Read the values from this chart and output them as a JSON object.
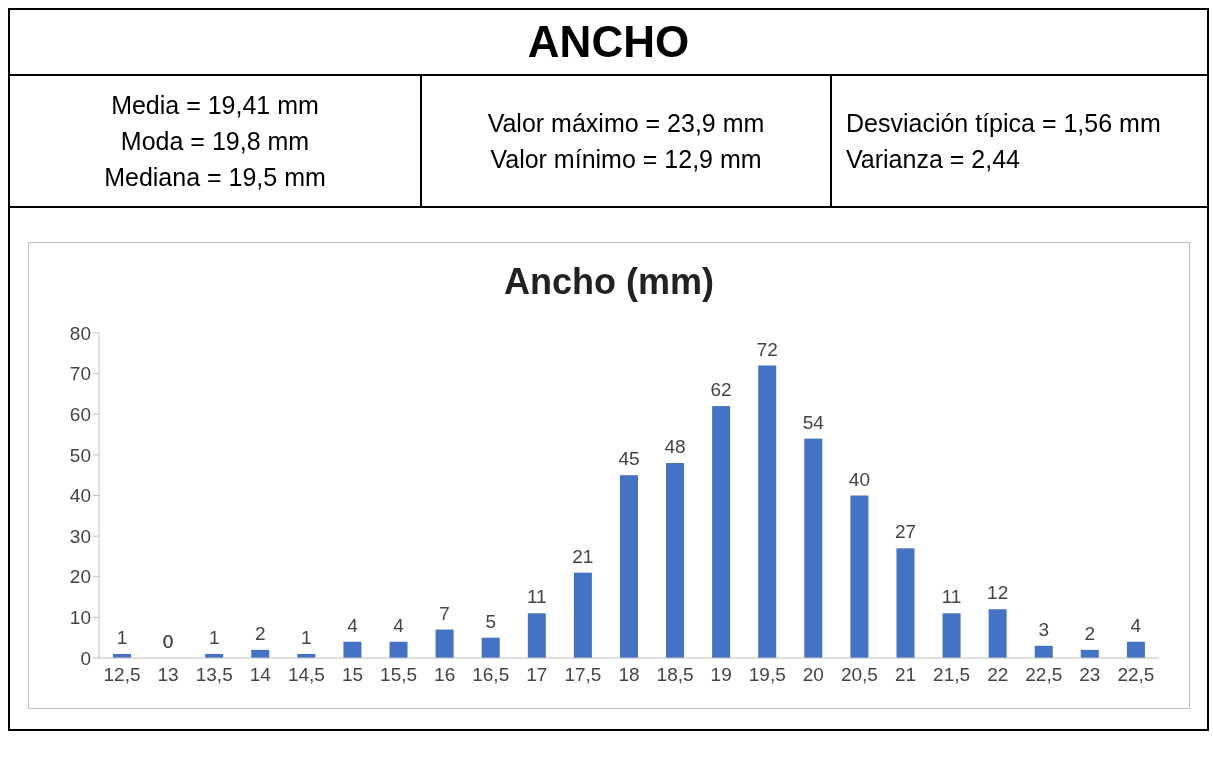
{
  "chart_data": {
    "type": "bar",
    "title": "ANCHO",
    "subtitle": "Ancho (mm)",
    "annotations": [
      "Media = 19,41 mm\nModa = 19,8 mm\nMediana = 19,5 mm",
      "Valor máximo = 23,9 mm\nValor mínimo = 12,9 mm",
      "Desviación típica = 1,56 mm\nVarianza = 2,44"
    ],
    "categories": [
      "12,5",
      "13",
      "13,5",
      "14",
      "14,5",
      "15",
      "15,5",
      "16",
      "16,5",
      "17",
      "17,5",
      "18",
      "18,5",
      "19",
      "19,5",
      "20",
      "20,5",
      "21",
      "21,5",
      "22",
      "22,5",
      "23",
      "22,5"
    ],
    "values": [
      1,
      0,
      1,
      2,
      1,
      4,
      4,
      7,
      5,
      11,
      21,
      45,
      48,
      62,
      72,
      54,
      40,
      27,
      11,
      12,
      3,
      2,
      4
    ],
    "color": "#4472c4",
    "ylim": [
      0,
      80
    ],
    "yticks": [
      0,
      10,
      20,
      30,
      40,
      50,
      60,
      70,
      80
    ],
    "data_labels": true
  }
}
